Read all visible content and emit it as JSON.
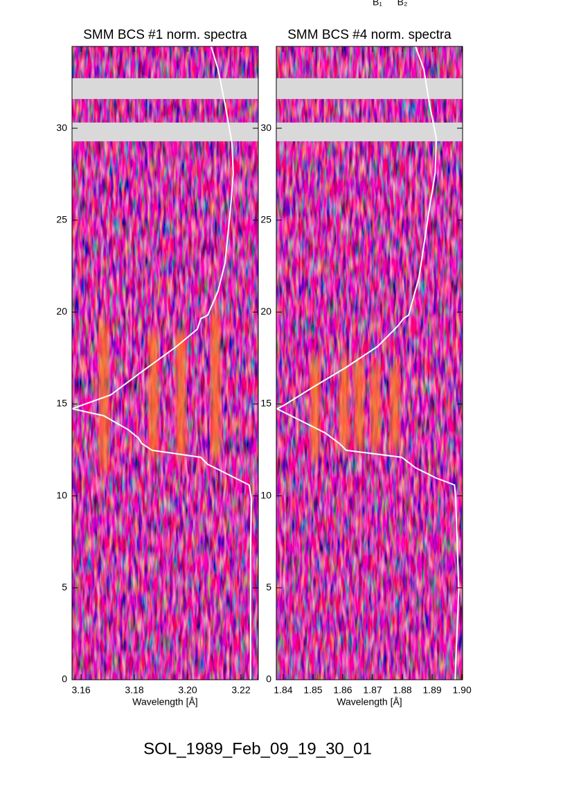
{
  "header_labels": [
    "B₁",
    "B₂"
  ],
  "figure_title": "SOL_1989_Feb_09_19_30_01",
  "chart_data": [
    {
      "type": "spectrogram",
      "title": "SMM BCS #1 norm. spectra",
      "x_label": "Wavelength [Å]",
      "xlim": [
        3.1566,
        3.2265
      ],
      "xticks": [
        3.16,
        3.18,
        {
          "value": 3.2,
          "label": "3.20"
        },
        3.22
      ],
      "ylim": [
        0,
        34.45
      ],
      "yticks": [
        0,
        5,
        10,
        15,
        20,
        25,
        30
      ],
      "gaps": [
        [
          29.29,
          30.31
        ],
        [
          31.59,
          32.72
        ]
      ],
      "bands": [
        {
          "x": 3.1685,
          "t": [
            11.5,
            19.5
          ]
        },
        {
          "x": 3.1872,
          "t": [
            12.0,
            19.0
          ]
        },
        {
          "x": 3.1975,
          "t": [
            12.0,
            19.0
          ]
        },
        {
          "x": 3.2105,
          "t": [
            12.0,
            20.0
          ]
        }
      ],
      "curve": {
        "x": [
          3.2236,
          3.2236,
          3.2239,
          3.2231,
          3.2179,
          3.2127,
          3.2075,
          3.2049,
          3.1958,
          3.1867,
          3.1828,
          3.1815,
          3.1776,
          3.1685,
          3.1566,
          3.1602,
          3.1711,
          3.1815,
          3.1958,
          3.2036,
          3.2049,
          3.2075,
          3.2114,
          3.214,
          3.2161,
          3.2171,
          3.2166,
          3.214,
          3.2114,
          3.2088
        ],
        "y": [
          0,
          6.82,
          9.84,
          10.59,
          10.97,
          11.35,
          11.72,
          12.1,
          12.29,
          12.48,
          12.85,
          13.15,
          13.61,
          14.36,
          14.74,
          14.93,
          15.49,
          16.62,
          18.13,
          19.07,
          19.64,
          19.83,
          21.15,
          22.66,
          25.67,
          27.55,
          29.21,
          31.32,
          33.21,
          34.45
        ]
      }
    },
    {
      "type": "spectrogram",
      "title": "SMM BCS #4 norm. spectra",
      "x_label": "Wavelength [Å]",
      "xlim": [
        1.8377,
        1.9002
      ],
      "xticks": [
        1.84,
        1.85,
        1.86,
        1.87,
        1.88,
        1.89,
        {
          "value": 1.9,
          "label": "1.90"
        }
      ],
      "ylim": [
        0,
        34.45
      ],
      "yticks": [
        0,
        5,
        10,
        15,
        20,
        25,
        30
      ],
      "gaps": [
        [
          29.29,
          30.31
        ],
        [
          31.59,
          32.72
        ]
      ],
      "bands": [
        {
          "x": 1.8507,
          "t": [
            12.0,
            17.5
          ]
        },
        {
          "x": 1.8605,
          "t": [
            12.5,
            17.5
          ]
        },
        {
          "x": 1.8655,
          "t": [
            12.5,
            17.5
          ]
        },
        {
          "x": 1.871,
          "t": [
            12.5,
            17.0
          ]
        },
        {
          "x": 1.8775,
          "t": [
            12.5,
            17.0
          ]
        }
      ],
      "curve": {
        "x": [
          1.8977,
          1.8989,
          1.8979,
          1.8975,
          1.8914,
          1.8844,
          1.8798,
          1.8705,
          1.8612,
          1.8589,
          1.8542,
          1.8426,
          1.8379,
          1.8403,
          1.8496,
          1.8612,
          1.8717,
          1.8786,
          1.8803,
          1.8821,
          1.8856,
          1.8891,
          1.891,
          1.8914,
          1.8891,
          1.8872,
          1.8844
        ],
        "y": [
          0,
          4.94,
          9.84,
          10.59,
          10.97,
          11.53,
          12.1,
          12.29,
          12.48,
          12.85,
          13.42,
          14.36,
          14.74,
          14.93,
          15.87,
          17.0,
          18.13,
          19.26,
          19.64,
          19.83,
          21.9,
          25.67,
          27.55,
          29.44,
          31.32,
          33.21,
          34.45
        ]
      }
    }
  ]
}
